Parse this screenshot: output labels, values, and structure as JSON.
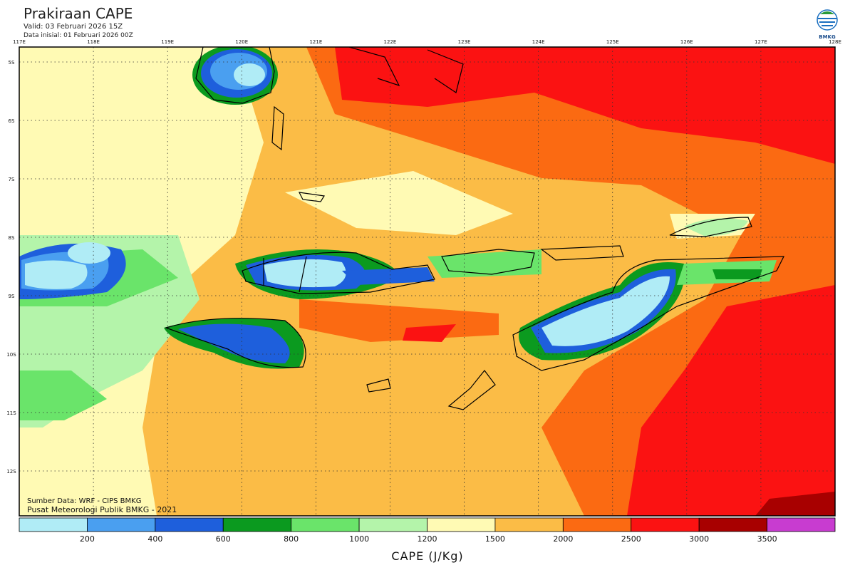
{
  "header": {
    "title": "Prakiraan CAPE",
    "valid": "Valid: 03 Februari 2026 15Z",
    "init": "Data inisial: 01 Februari 2026 00Z"
  },
  "logo": {
    "label": "BMKG"
  },
  "map": {
    "lon_labels": [
      "117E",
      "118E",
      "119E",
      "120E",
      "121E",
      "122E",
      "123E",
      "124E",
      "125E",
      "126E",
      "127E",
      "128E"
    ],
    "lat_labels": [
      "5S",
      "6S",
      "7S",
      "8S",
      "9S",
      "10S",
      "11S",
      "12S"
    ],
    "source": "Sumber Data: WRF - CIPS BMKG",
    "credit": "Pusat Meteorologi Publik BMKG - 2021"
  },
  "colorbar": {
    "colors": [
      "#b0ecf6",
      "#4a9ff0",
      "#1e5fdc",
      "#0b9a1f",
      "#6ae46a",
      "#b4f4aa",
      "#fffab4",
      "#fbbc46",
      "#fb6a12",
      "#fb1212",
      "#a80000",
      "#c83cd0"
    ],
    "ticks": [
      200,
      400,
      600,
      800,
      1000,
      1200,
      1500,
      2000,
      2500,
      3000,
      3500
    ],
    "label": "CAPE (J/Kg)"
  }
}
